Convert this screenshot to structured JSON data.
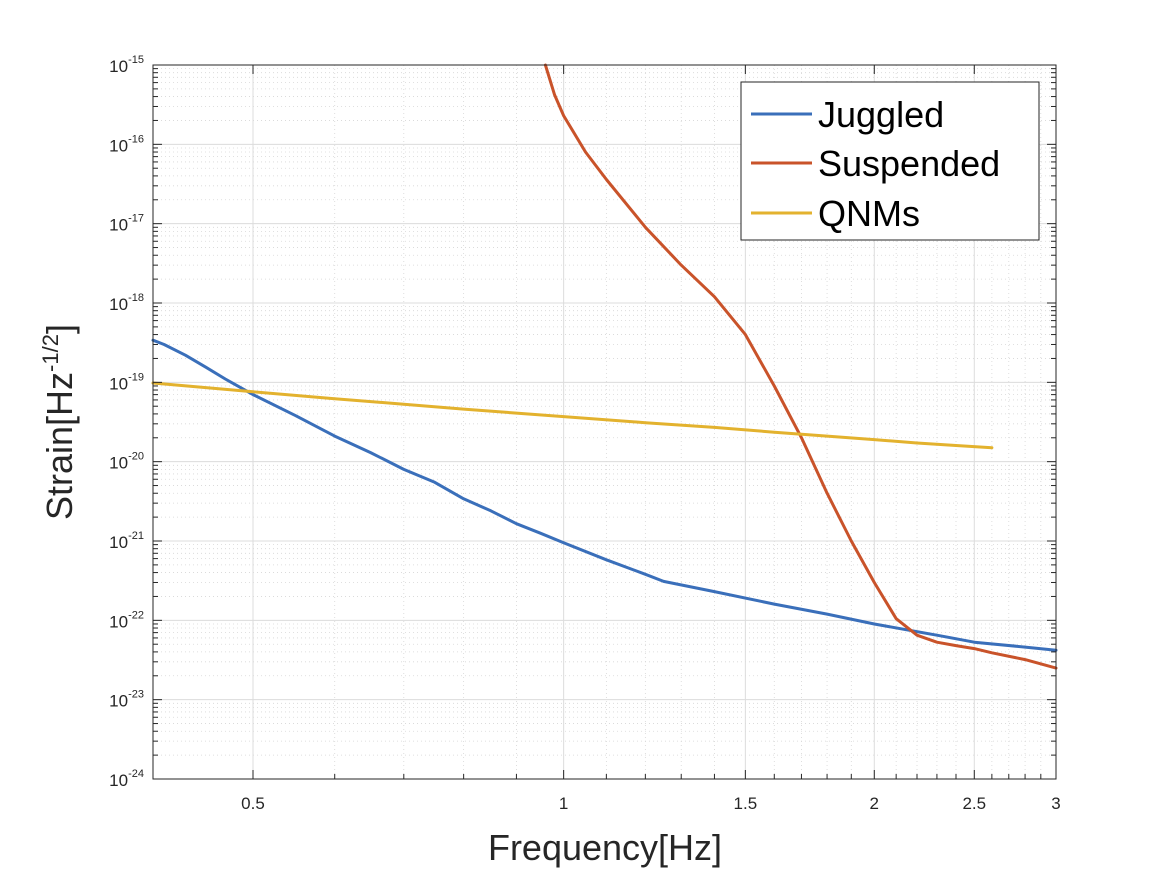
{
  "chart_data": {
    "type": "line",
    "xlabel": "Frequency[Hz]",
    "ylabel": {
      "base": "Strain[Hz",
      "exponent": "-1/2",
      "close": "]"
    },
    "xscale": "log",
    "yscale": "log",
    "xlim": [
      0.4,
      3
    ],
    "ylim": [
      1e-24,
      1e-15
    ],
    "grid": true,
    "minor_grid": true,
    "legend_position": "top-right",
    "x_ticks": [
      {
        "value": 0.5,
        "label": "0.5"
      },
      {
        "value": 1,
        "label": "1"
      },
      {
        "value": 1.5,
        "label": "1.5"
      },
      {
        "value": 2,
        "label": "2"
      },
      {
        "value": 2.5,
        "label": "2.5"
      },
      {
        "value": 3,
        "label": "3"
      }
    ],
    "y_ticks": [
      {
        "value": 1e-24,
        "base": "10",
        "exponent": "-24"
      },
      {
        "value": 1e-23,
        "base": "10",
        "exponent": "-23"
      },
      {
        "value": 1e-22,
        "base": "10",
        "exponent": "-22"
      },
      {
        "value": 1e-21,
        "base": "10",
        "exponent": "-21"
      },
      {
        "value": 1e-20,
        "base": "10",
        "exponent": "-20"
      },
      {
        "value": 1e-19,
        "base": "10",
        "exponent": "-19"
      },
      {
        "value": 1e-18,
        "base": "10",
        "exponent": "-18"
      },
      {
        "value": 1e-17,
        "base": "10",
        "exponent": "-17"
      },
      {
        "value": 1e-16,
        "base": "10",
        "exponent": "-16"
      },
      {
        "value": 1e-15,
        "base": "10",
        "exponent": "-15"
      }
    ],
    "series": [
      {
        "name": "Juggled",
        "color": "#3a6fba",
        "x": [
          0.4,
          0.41,
          0.43,
          0.45,
          0.47,
          0.5,
          0.55,
          0.6,
          0.65,
          0.7,
          0.75,
          0.8,
          0.85,
          0.9,
          0.95,
          1.0,
          1.1,
          1.2,
          1.25,
          1.4,
          1.6,
          1.8,
          2.0,
          2.3,
          2.5,
          2.8,
          3.0
        ],
        "y": [
          3.4e-19,
          3e-19,
          2.2e-19,
          1.55e-19,
          1.1e-19,
          7e-20,
          3.8e-20,
          2.1e-20,
          1.3e-20,
          8e-21,
          5.5e-21,
          3.4e-21,
          2.4e-21,
          1.65e-21,
          1.25e-21,
          9.5e-22,
          5.8e-22,
          3.8e-22,
          3.1e-22,
          2.3e-22,
          1.6e-22,
          1.2e-22,
          9e-23,
          6.5e-23,
          5.3e-23,
          4.6e-23,
          4.2e-23
        ]
      },
      {
        "name": "Suspended",
        "color": "#c9532a",
        "x": [
          0.96,
          0.98,
          1.0,
          1.05,
          1.1,
          1.2,
          1.3,
          1.4,
          1.5,
          1.6,
          1.7,
          1.8,
          1.9,
          2.0,
          2.1,
          2.2,
          2.3,
          2.4,
          2.5,
          2.6,
          2.8,
          3.0
        ],
        "y": [
          1e-15,
          4.2e-16,
          2.3e-16,
          8e-17,
          3.6e-17,
          9e-18,
          3e-18,
          1.2e-18,
          4e-19,
          9e-20,
          2e-20,
          4e-21,
          1e-21,
          3e-22,
          1.05e-22,
          6.5e-23,
          5.3e-23,
          4.8e-23,
          4.4e-23,
          3.9e-23,
          3.2e-23,
          2.5e-23
        ]
      },
      {
        "name": "QNMs",
        "color": "#e3b22e",
        "x": [
          0.4,
          0.5,
          0.6,
          0.7,
          0.8,
          0.9,
          1.0,
          1.2,
          1.4,
          1.6,
          1.8,
          2.0,
          2.2,
          2.4,
          2.6
        ],
        "y": [
          9.8e-20,
          7.6e-20,
          6.2e-20,
          5.3e-20,
          4.6e-20,
          4.1e-20,
          3.7e-20,
          3.1e-20,
          2.7e-20,
          2.35e-20,
          2.1e-20,
          1.9e-20,
          1.72e-20,
          1.6e-20,
          1.5e-20
        ]
      }
    ]
  }
}
